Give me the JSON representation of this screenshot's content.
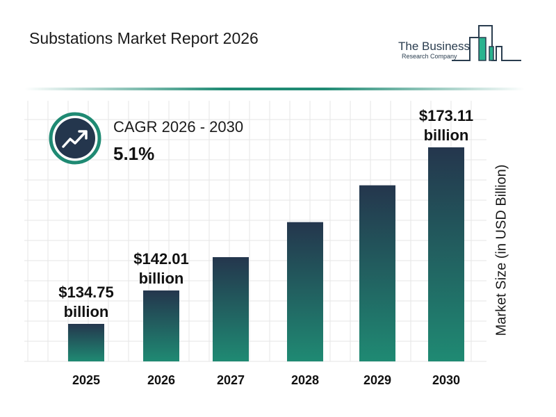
{
  "title": "Substations Market Report 2026",
  "logo": {
    "line1": "The Business",
    "line2": "Research Company"
  },
  "cagr": {
    "label": "CAGR 2026 - 2030",
    "value": "5.1%",
    "icon": "trend-up-icon"
  },
  "colors": {
    "bar_top": "#24364d",
    "bar_bottom": "#1f8a73",
    "accent": "#1f8a73",
    "icon_bg": "#24364d"
  },
  "chart_data": {
    "type": "bar",
    "categories": [
      "2025",
      "2026",
      "2027",
      "2028",
      "2029",
      "2030"
    ],
    "values": [
      134.75,
      142.01,
      149.25,
      156.86,
      164.86,
      173.11
    ],
    "data_labels": [
      "$134.75 billion",
      "$142.01 billion",
      "",
      "",
      "",
      "$173.11 billion"
    ],
    "ylabel": "Market Size (in USD Billion)",
    "grid": true
  }
}
